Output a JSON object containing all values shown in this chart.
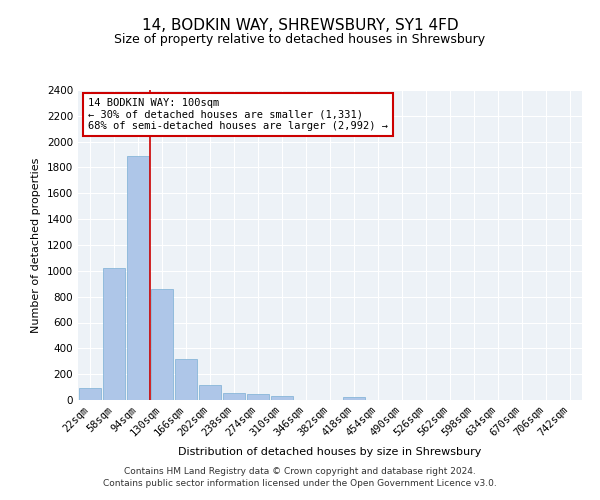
{
  "title": "14, BODKIN WAY, SHREWSBURY, SY1 4FD",
  "subtitle": "Size of property relative to detached houses in Shrewsbury",
  "xlabel": "Distribution of detached houses by size in Shrewsbury",
  "ylabel": "Number of detached properties",
  "categories": [
    "22sqm",
    "58sqm",
    "94sqm",
    "130sqm",
    "166sqm",
    "202sqm",
    "238sqm",
    "274sqm",
    "310sqm",
    "346sqm",
    "382sqm",
    "418sqm",
    "454sqm",
    "490sqm",
    "526sqm",
    "562sqm",
    "598sqm",
    "634sqm",
    "670sqm",
    "706sqm",
    "742sqm"
  ],
  "values": [
    90,
    1020,
    1890,
    860,
    320,
    115,
    55,
    45,
    30,
    0,
    0,
    25,
    0,
    0,
    0,
    0,
    0,
    0,
    0,
    0,
    0
  ],
  "bar_color": "#aec6e8",
  "bar_edge_color": "#7bafd4",
  "red_line_x": 2.5,
  "annotation_text": "14 BODKIN WAY: 100sqm\n← 30% of detached houses are smaller (1,331)\n68% of semi-detached houses are larger (2,992) →",
  "annotation_box_color": "#ffffff",
  "annotation_box_edge_color": "#cc0000",
  "ylim": [
    0,
    2400
  ],
  "yticks": [
    0,
    200,
    400,
    600,
    800,
    1000,
    1200,
    1400,
    1600,
    1800,
    2000,
    2200,
    2400
  ],
  "footer_line1": "Contains HM Land Registry data © Crown copyright and database right 2024.",
  "footer_line2": "Contains public sector information licensed under the Open Government Licence v3.0.",
  "background_color": "#edf2f7",
  "grid_color": "#ffffff",
  "title_fontsize": 11,
  "subtitle_fontsize": 9,
  "axis_label_fontsize": 8,
  "tick_fontsize": 7.5,
  "annotation_fontsize": 7.5,
  "footer_fontsize": 6.5
}
